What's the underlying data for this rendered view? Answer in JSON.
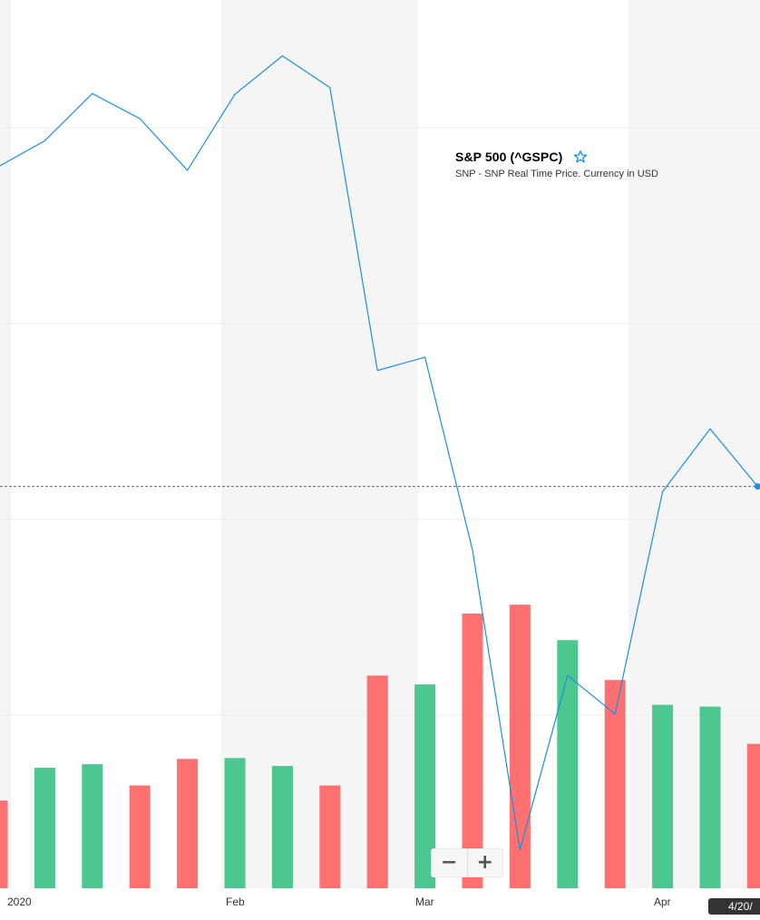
{
  "header": {
    "title": "S&P 500 (^GSPC)",
    "subtitle": "SNP - SNP Real Time Price. Currency in USD"
  },
  "controls": {
    "zoom_out_label": "−",
    "zoom_in_label": "+"
  },
  "crosshair": {
    "date_label": "4/20/"
  },
  "colors": {
    "line": "#1a8fdd",
    "volume_up": "#4dc790",
    "volume_down": "#ff7070",
    "shade": "#f5f5f5",
    "crosshair": "#555555",
    "grid": "#ececec"
  },
  "chart_data": {
    "type": "line",
    "x": [
      "2019-12-30",
      "2020-01-06",
      "2020-01-13",
      "2020-01-20",
      "2020-01-27",
      "2020-02-03",
      "2020-02-10",
      "2020-02-17",
      "2020-02-24",
      "2020-03-02",
      "2020-03-09",
      "2020-03-16",
      "2020-03-23",
      "2020-03-30",
      "2020-04-06",
      "2020-04-13",
      "2020-04-20"
    ],
    "series": [
      {
        "values": [
          3229,
          3265,
          3329,
          3295,
          3225,
          3328,
          3380,
          3337,
          2954,
          2972,
          2711,
          2305,
          2541,
          2489,
          2790,
          2875,
          2797
        ]
      }
    ],
    "ylim": [
      2280,
      3420
    ],
    "volume": {
      "values": [
        9.9,
        13.6,
        14.0,
        11.6,
        14.6,
        14.7,
        13.8,
        11.6,
        24.0,
        23.0,
        31.0,
        32.0,
        28.0,
        23.5,
        20.7,
        20.5,
        16.3
      ],
      "direction": [
        "down",
        "up",
        "up",
        "down",
        "down",
        "up",
        "up",
        "down",
        "down",
        "up",
        "down",
        "down",
        "up",
        "down",
        "up",
        "up",
        "down"
      ],
      "ylim": [
        0,
        45
      ]
    },
    "x_tick_labels": [
      "2020",
      "Feb",
      "Mar",
      "Apr"
    ],
    "crosshair_value": 2797,
    "grid": true,
    "legend": "none"
  }
}
